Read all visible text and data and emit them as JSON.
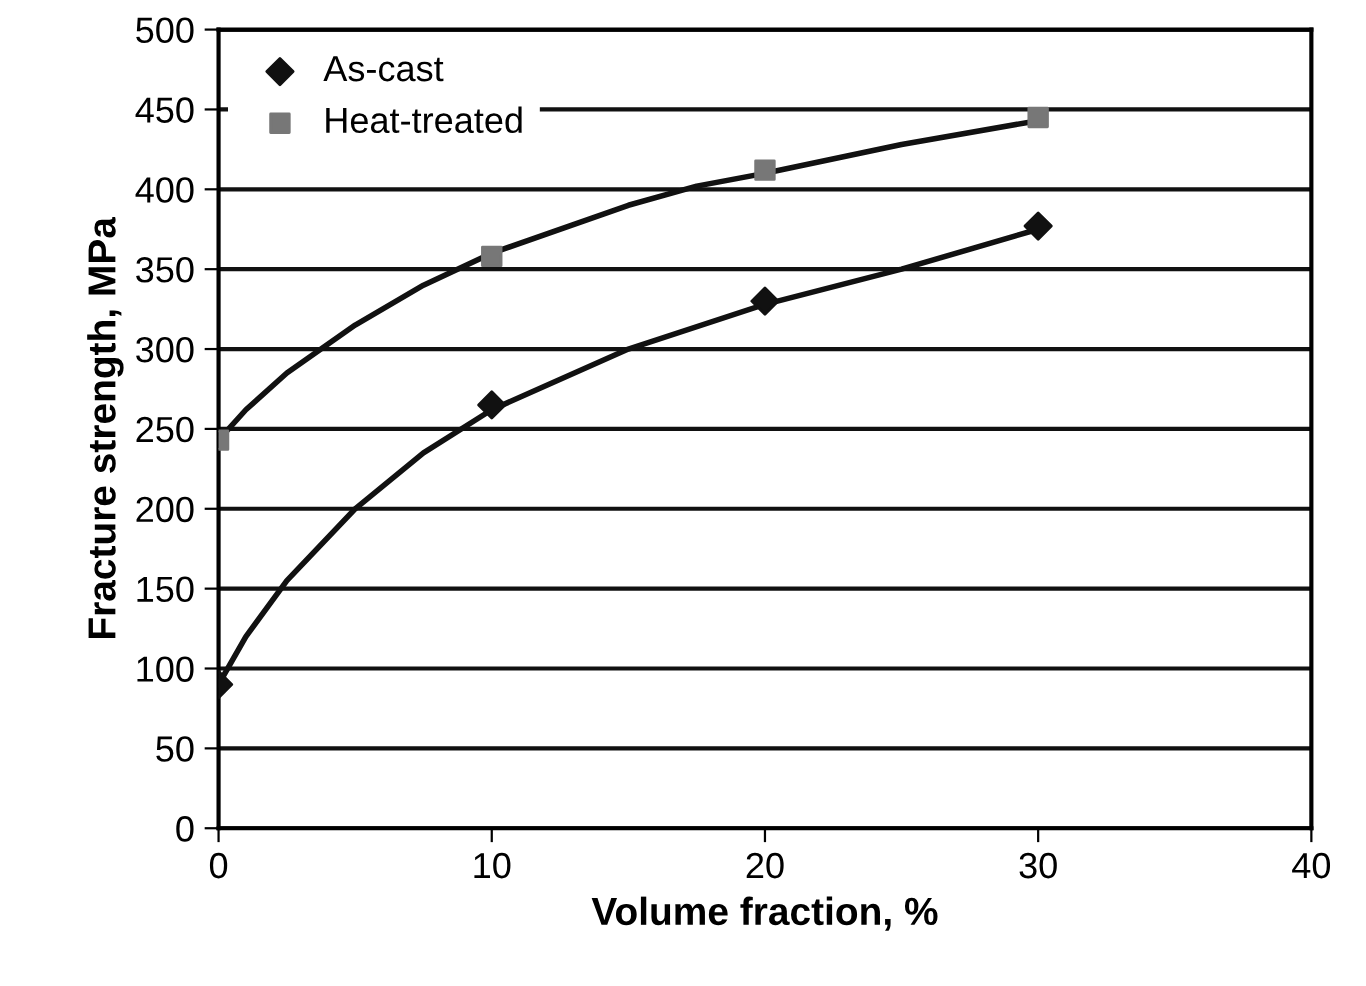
{
  "chart_data": {
    "type": "scatter",
    "xlabel": "Volume fraction, %",
    "ylabel": "Fracture strength, MPa",
    "xlim": [
      0,
      40
    ],
    "xticks": [
      0,
      10,
      20,
      30,
      40
    ],
    "ylim": [
      0,
      500
    ],
    "yticks": [
      0,
      50,
      100,
      150,
      200,
      250,
      300,
      350,
      400,
      450,
      500
    ],
    "grid": "y",
    "legend": "top left",
    "series": [
      {
        "name": "As-cast",
        "marker": "diamond",
        "color": "#111111",
        "x": [
          0,
          10,
          20,
          30
        ],
        "values": [
          90,
          265,
          330,
          377
        ]
      },
      {
        "name": "Heat-treated",
        "marker": "square",
        "color": "#777777",
        "x": [
          0,
          10,
          20,
          30
        ],
        "values": [
          243,
          358,
          412,
          445
        ]
      },
      {
        "type": "line",
        "marker": "none",
        "color": "#111111",
        "x": [
          0,
          1,
          2.5,
          5,
          7.5,
          10,
          15,
          20,
          25,
          30
        ],
        "values": [
          90,
          120,
          155,
          200,
          235,
          262,
          300,
          328,
          350,
          375
        ]
      },
      {
        "type": "line",
        "marker": "none",
        "color": "#111111",
        "x": [
          0,
          1,
          2.5,
          5,
          7.5,
          10,
          15,
          17.5,
          20,
          25,
          30
        ],
        "values": [
          243,
          262,
          285,
          315,
          340,
          360,
          390,
          402,
          410,
          428,
          443
        ]
      }
    ]
  }
}
